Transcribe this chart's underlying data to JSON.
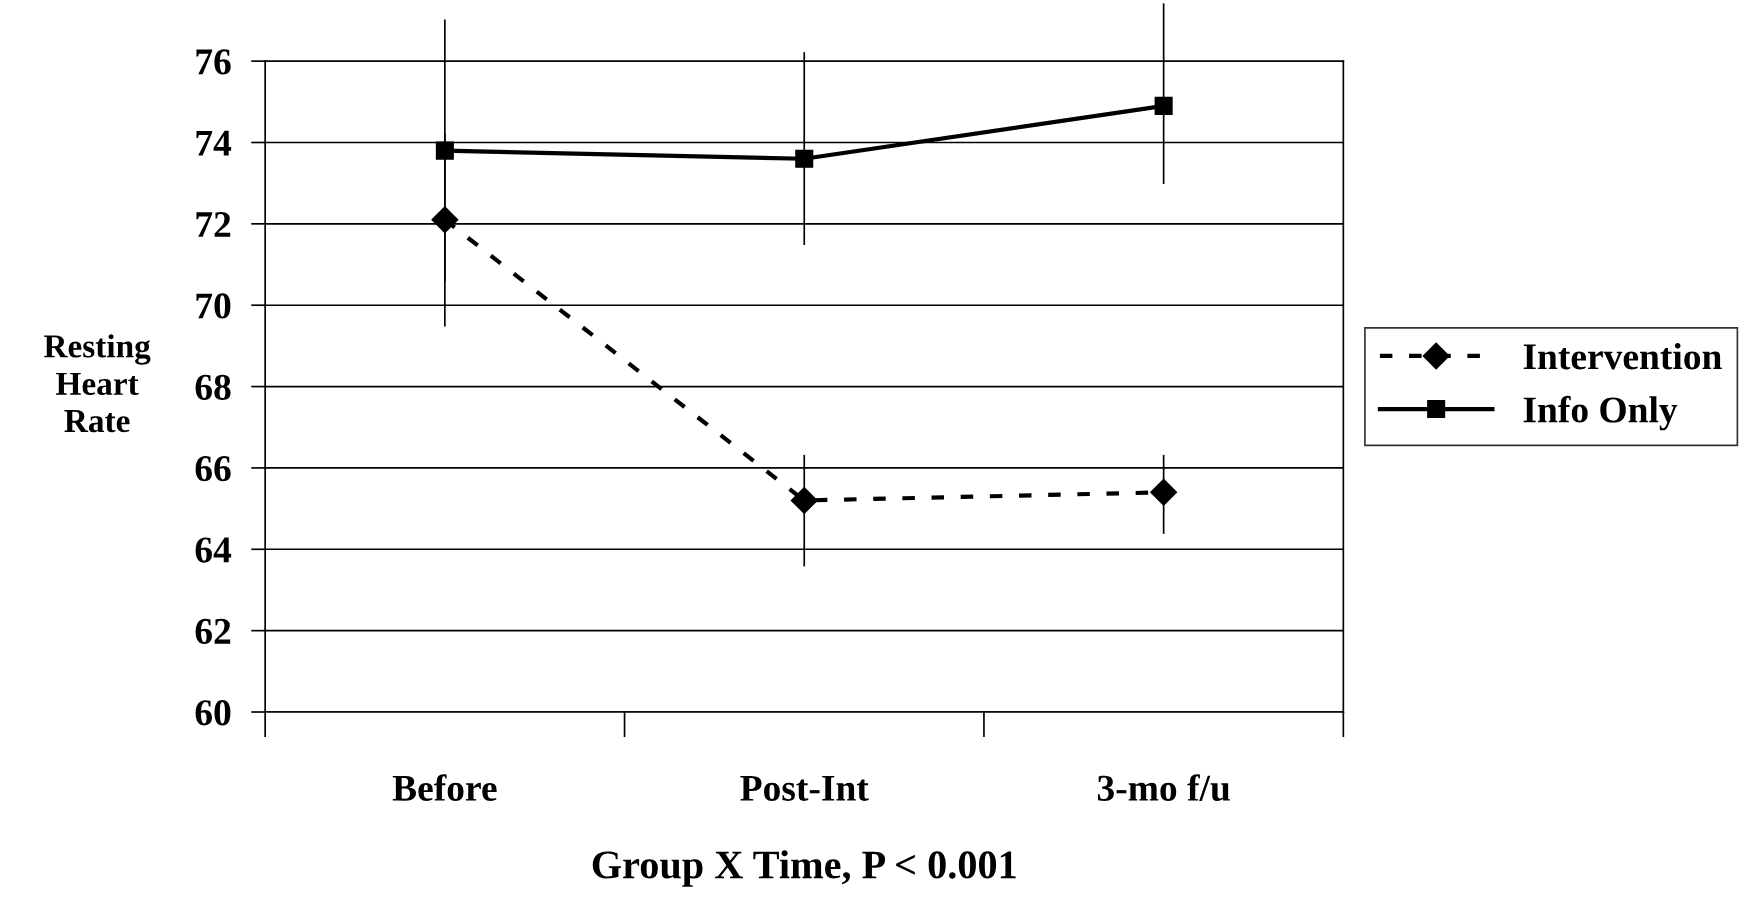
{
  "chart_data": {
    "type": "line",
    "xlabel": "Group X Time, P < 0.001",
    "ylabel": "Resting\nHeart\nRate",
    "categories": [
      "Before",
      "Post-Int",
      "3-mo f/u"
    ],
    "series": [
      {
        "name": "Intervention",
        "color": "#000000",
        "marker": "diamond",
        "line_style": "dashed",
        "values": [
          72.1,
          65.2,
          65.4
        ],
        "errors": [
          [
            69.5,
            74.2
          ],
          [
            63.6,
            66.3
          ],
          [
            64.4,
            66.3
          ]
        ]
      },
      {
        "name": "Info Only",
        "color": "#000000",
        "marker": "square",
        "line_style": "solid",
        "values": [
          73.8,
          73.6,
          74.9
        ],
        "errors": [
          [
            70.6,
            77.0
          ],
          [
            71.5,
            76.2
          ],
          [
            73.0,
            77.4
          ]
        ]
      }
    ],
    "ylim": [
      60,
      76
    ],
    "yticks": [
      60,
      62,
      64,
      66,
      68,
      70,
      72,
      74,
      76
    ],
    "grid": "y",
    "legend": "right"
  }
}
